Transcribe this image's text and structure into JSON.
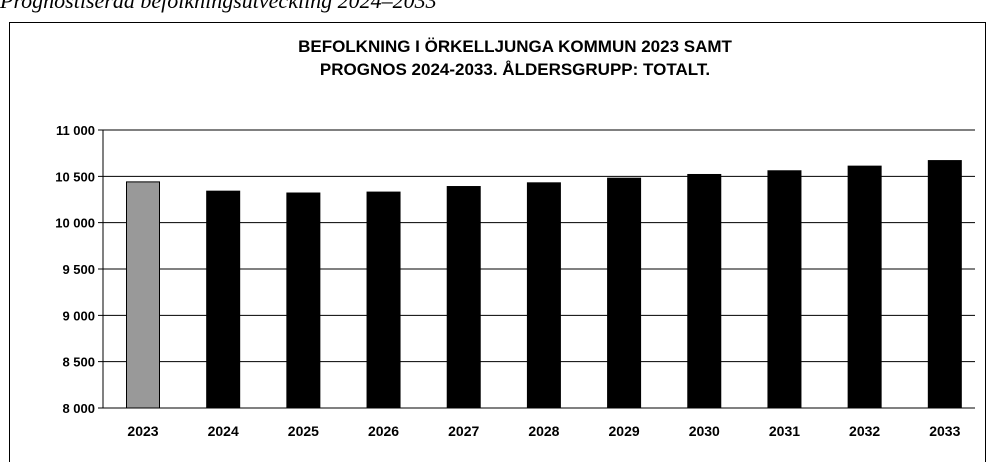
{
  "caption": "Prognostiserad befolkningsutveckling 2024–2033",
  "chart_data": {
    "type": "bar",
    "title": [
      "BEFOLKNING I ÖRKELLJUNGA KOMMUN 2023 SAMT",
      "PROGNOS 2024-2033. ÅLDERSGRUPP: TOTALT."
    ],
    "categories": [
      "2023",
      "2024",
      "2025",
      "2026",
      "2027",
      "2028",
      "2029",
      "2030",
      "2031",
      "2032",
      "2033"
    ],
    "values": [
      10440,
      10340,
      10320,
      10330,
      10390,
      10430,
      10480,
      10520,
      10560,
      10610,
      10670
    ],
    "colors": [
      "#999999",
      "#000000",
      "#000000",
      "#000000",
      "#000000",
      "#000000",
      "#000000",
      "#000000",
      "#000000",
      "#000000",
      "#000000"
    ],
    "ylim": [
      8000,
      11000
    ],
    "yticks": [
      {
        "value": 8000,
        "label": "8 000"
      },
      {
        "value": 8500,
        "label": "8 500"
      },
      {
        "value": 9000,
        "label": "9 000"
      },
      {
        "value": 9500,
        "label": "9 500"
      },
      {
        "value": 10000,
        "label": "10 000"
      },
      {
        "value": 10500,
        "label": "10 500"
      },
      {
        "value": 11000,
        "label": "11 000"
      }
    ],
    "grid": true
  }
}
